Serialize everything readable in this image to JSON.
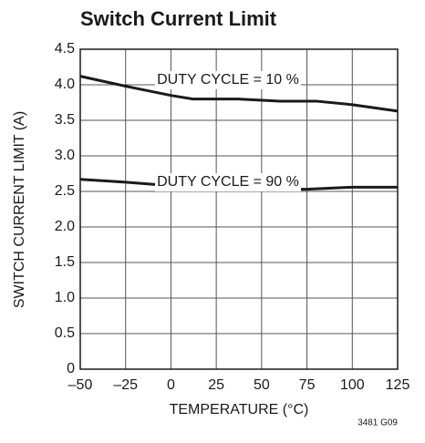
{
  "chart_data": {
    "type": "line",
    "title": "Switch Current Limit",
    "xlabel": "TEMPERATURE (°C)",
    "ylabel": "SWITCH CURRENT LIMIT (A)",
    "footnote": "3481 G09",
    "series": [
      {
        "name": "DUTY CYCLE = 10 %",
        "color": "#1a1a1a",
        "x": [
          -50,
          -25,
          0,
          12,
          37,
          60,
          80,
          100,
          125
        ],
        "values": [
          4.12,
          3.98,
          3.85,
          3.8,
          3.8,
          3.77,
          3.77,
          3.72,
          3.63
        ]
      },
      {
        "name": "DUTY CYCLE = 90 %",
        "color": "#1a1a1a",
        "x": [
          -50,
          -25,
          0,
          15,
          40,
          75,
          100,
          125
        ],
        "values": [
          2.67,
          2.63,
          2.58,
          2.53,
          2.53,
          2.53,
          2.56,
          2.56
        ]
      }
    ],
    "xlim": [
      -50,
      125
    ],
    "xticks": [
      {
        "value": -50,
        "label": "–50"
      },
      {
        "value": -25,
        "label": "–25"
      },
      0,
      25,
      50,
      75,
      100,
      125
    ],
    "ylim": [
      0,
      4.5
    ],
    "yticks": [
      0,
      0.5,
      {
        "value": 1,
        "label": "1.0"
      },
      1.5,
      {
        "value": 2,
        "label": "2.0"
      },
      2.5,
      {
        "value": 3,
        "label": "3.0"
      },
      3.5,
      {
        "value": 4,
        "label": "4.0"
      },
      4.5
    ],
    "grid": true
  }
}
